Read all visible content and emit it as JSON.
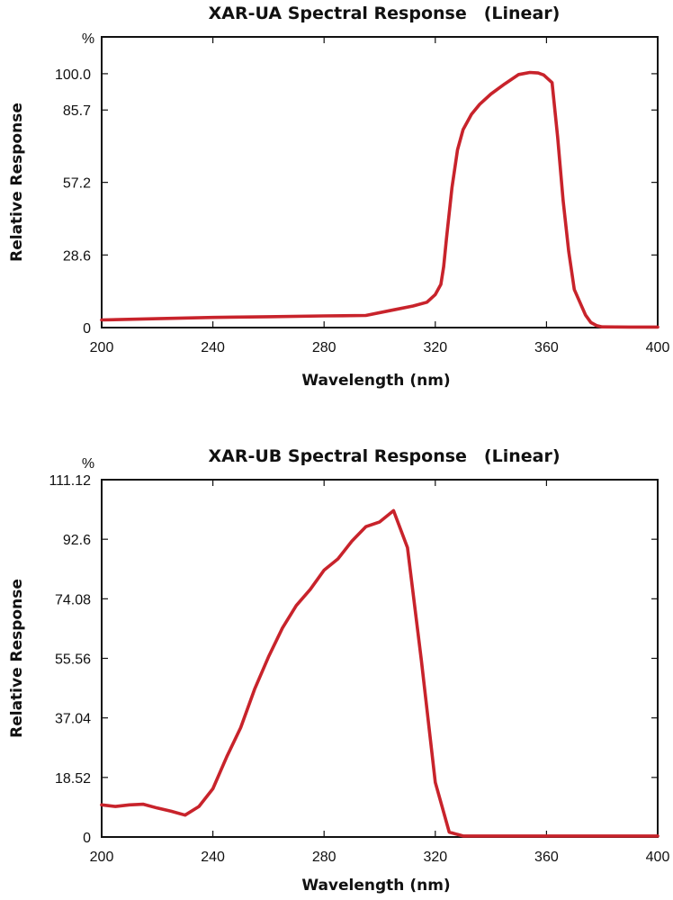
{
  "chart_data": [
    {
      "type": "line",
      "title": "XAR-UA Spectral Response　(Linear)",
      "xlabel": "Wavelength (nm)",
      "ylabel": "Relative Response",
      "y_unit": "%",
      "xlim": [
        200,
        400
      ],
      "ylim": [
        0,
        114.5
      ],
      "x_ticks": [
        200,
        240,
        280,
        320,
        360,
        400
      ],
      "x_tick_labels": [
        "200",
        "240",
        "280",
        "320",
        "360",
        "400"
      ],
      "y_ticks": [
        0,
        28.6,
        57.2,
        85.7,
        100.0
      ],
      "y_tick_labels": [
        "0",
        "28.6",
        "57.2",
        "85.7",
        "100.0"
      ],
      "line_color": "#c8232b",
      "series": [
        {
          "name": "XAR-UA",
          "x": [
            200,
            220,
            240,
            260,
            280,
            295,
            305,
            312,
            317,
            320,
            322,
            323,
            324,
            326,
            328,
            330,
            333,
            336,
            340,
            345,
            350,
            354,
            357,
            359,
            362,
            364,
            366,
            368,
            370,
            372,
            374,
            376,
            378,
            380,
            390,
            400
          ],
          "y": [
            3,
            3.5,
            4,
            4.3,
            4.6,
            4.8,
            7,
            8.5,
            10,
            13,
            17,
            24,
            35,
            55,
            70,
            78,
            84,
            88,
            92,
            96,
            99.7,
            100.5,
            100.3,
            99.5,
            96.5,
            75,
            50,
            30,
            15,
            10,
            5,
            2,
            0.8,
            0.3,
            0.2,
            0.2
          ]
        }
      ]
    },
    {
      "type": "line",
      "title": "XAR-UB Spectral Response　(Linear)",
      "xlabel": "Wavelength (nm)",
      "ylabel": "Relative Response",
      "y_unit": "%",
      "xlim": [
        200,
        400
      ],
      "ylim": [
        0,
        111.12
      ],
      "x_ticks": [
        200,
        240,
        280,
        320,
        360,
        400
      ],
      "x_tick_labels": [
        "200",
        "240",
        "280",
        "320",
        "360",
        "400"
      ],
      "y_ticks": [
        0,
        18.52,
        37.04,
        55.56,
        74.08,
        92.6,
        111.12
      ],
      "y_tick_labels": [
        "0",
        "18.52",
        "37.04",
        "55.56",
        "74.08",
        "92.6",
        "111.12"
      ],
      "line_color": "#c8232b",
      "series": [
        {
          "name": "XAR-UB",
          "x": [
            200,
            205,
            210,
            215,
            220,
            225,
            230,
            235,
            240,
            245,
            250,
            255,
            260,
            265,
            270,
            275,
            280,
            285,
            290,
            295,
            300,
            305,
            310,
            315,
            320,
            325,
            330,
            340,
            360,
            400
          ],
          "y": [
            10,
            9.5,
            10,
            10.2,
            9,
            8,
            6.8,
            9.5,
            15,
            25,
            34,
            46,
            56,
            65,
            72,
            77,
            83,
            86.5,
            92,
            96.5,
            98,
            101.5,
            90,
            55,
            17,
            1.5,
            0.3,
            0.3,
            0.3,
            0.3
          ]
        }
      ]
    }
  ]
}
